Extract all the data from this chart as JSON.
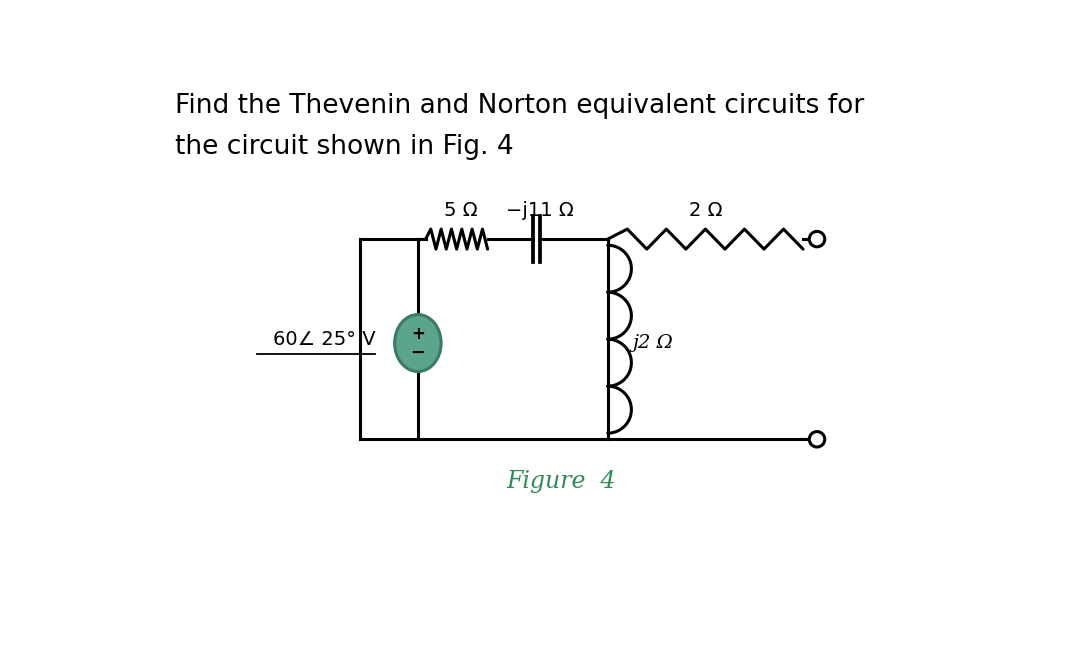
{
  "title_line1": "Find the Thevenin and Norton equivalent circuits for",
  "title_line2": "the circuit shown in Fig. 4",
  "figure_label": "Figure  4",
  "figure_label_color": "#2E8B57",
  "bg_color": "#ffffff",
  "resistor_5_label": "5 Ω",
  "capacitor_label": "−j11 Ω",
  "resistor_2_label": "2 Ω",
  "inductor_label": "j2 Ω",
  "source_label_main": "60∠ 25° V",
  "source_color": "#5BA58C",
  "source_edge_color": "#3a7a6a",
  "lw": 2.2,
  "title_fontsize": 19,
  "label_fontsize": 14,
  "fig_label_fontsize": 17
}
